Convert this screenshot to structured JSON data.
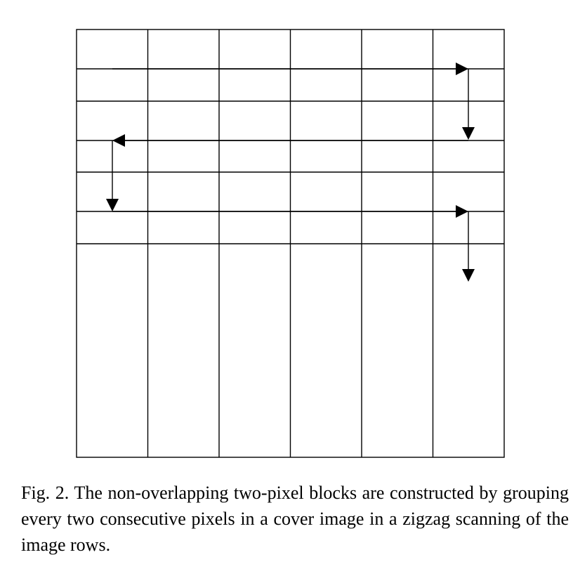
{
  "diagram": {
    "grid_columns": 6,
    "upper_rows": 3,
    "upper_rows_subdivided": true,
    "path_description_icon": "zigzag-arrow-path",
    "line_color": "#000000"
  },
  "caption": {
    "text": "Fig. 2. The non-overlapping two-pixel blocks are constructed by grouping every two consecutive pixels in a cover image in a zigzag scanning of the image rows."
  }
}
